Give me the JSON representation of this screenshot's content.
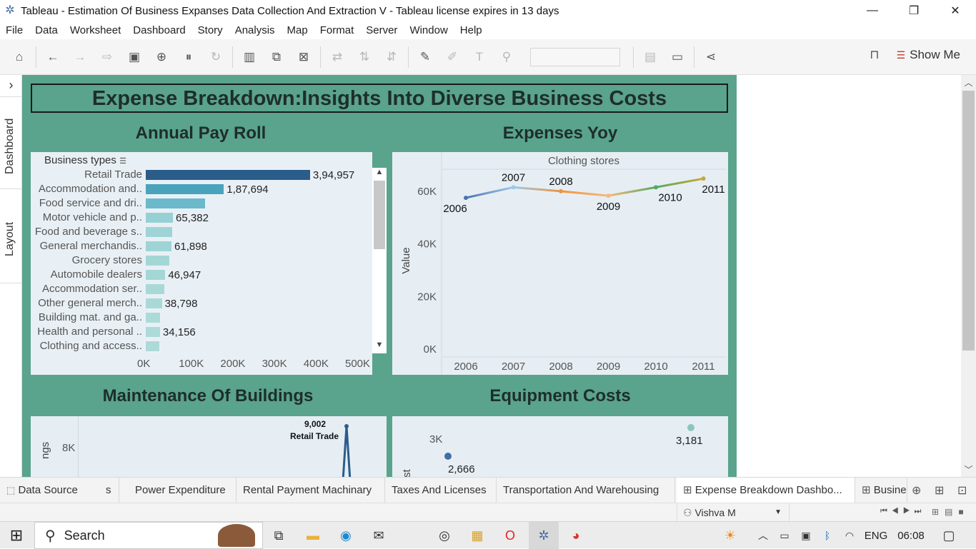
{
  "window": {
    "title": "Tableau - Estimation Of Business Expanses Data Collection And Extraction V - Tableau license expires in 13 days",
    "minimize": "—",
    "restore": "❐",
    "close": "✕"
  },
  "menu": [
    "File",
    "Data",
    "Worksheet",
    "Dashboard",
    "Story",
    "Analysis",
    "Map",
    "Format",
    "Server",
    "Window",
    "Help"
  ],
  "toolbar": {
    "show_me": "Show Me",
    "icons": [
      "home-icon",
      "undo-icon",
      "redo-icon",
      "replay-icon",
      "save-icon",
      "new-datasource-icon",
      "pause-icon",
      "refresh-icon",
      "new-worksheet-icon",
      "duplicate-icon",
      "clear-icon",
      "swap-icon",
      "sort-asc-icon",
      "sort-desc-icon",
      "highlight-icon",
      "annotate-icon",
      "label-icon",
      "pin-icon",
      "chart-icon",
      "presentation-icon",
      "share-icon",
      "paint-icon"
    ]
  },
  "left_rail": {
    "dashboard": "Dashboard",
    "layout": "Layout",
    "expand": "›"
  },
  "dashboard": {
    "title": "Expense Breakdown:Insights Into Diverse Business Costs",
    "sections": {
      "payroll": "Annual Pay Roll",
      "expenses": "Expenses Yoy",
      "maintenance": "Maintenance Of Buildings",
      "equipment": "Equipment Costs"
    }
  },
  "payroll_chart": {
    "header": "Business types",
    "axis_ticks": [
      "0K",
      "100K",
      "200K",
      "300K",
      "400K",
      "500K"
    ]
  },
  "yoy_chart": {
    "panel_header": "Clothing stores",
    "ylabel": "Value",
    "y_ticks": [
      "0K",
      "20K",
      "40K",
      "60K"
    ],
    "x_ticks": [
      "2006",
      "2007",
      "2008",
      "2009",
      "2010",
      "2011"
    ]
  },
  "maint_chart": {
    "ylabel_partial": "ngs",
    "y_tick": "8K",
    "peak_value": "9,002",
    "peak_label": "Retail Trade"
  },
  "equip_chart": {
    "ylabel_partial": "st",
    "y_tick": "3K",
    "labels": [
      "2,666",
      "3,181"
    ]
  },
  "chart_data": [
    {
      "type": "bar",
      "title": "Annual Pay Roll",
      "categories": [
        "Retail Trade",
        "Accommodation and..",
        "Food service and dri..",
        "Motor vehicle and p..",
        "Food and beverage s..",
        "General merchandis..",
        "Grocery stores",
        "Automobile dealers",
        "Accommodation ser..",
        "Other general merch..",
        "Building mat. and ga..",
        "Health and personal ..",
        "Clothing and access.."
      ],
      "values": [
        394957,
        187694,
        142000,
        65382,
        64000,
        61898,
        57000,
        46947,
        44000,
        38798,
        34800,
        34156,
        32000
      ],
      "value_labels": [
        "3,94,957",
        "1,87,694",
        "",
        "65,382",
        "",
        "61,898",
        "",
        "46,947",
        "",
        "38,798",
        "",
        "34,156",
        ""
      ],
      "colors": [
        "#2b5d8a",
        "#4aa3bd",
        "#6cb9cc",
        "#97d0d4",
        "#9fd4d6",
        "#9fd4d6",
        "#a3d7d6",
        "#a3d7d6",
        "#a8d9d7",
        "#a8d9d7",
        "#abdbd8",
        "#abdbd8",
        "#add9d8"
      ],
      "xlim": [
        0,
        500000
      ],
      "ylabel": "Business types"
    },
    {
      "type": "line",
      "title": "Expenses Yoy",
      "panel": "Clothing stores",
      "x": [
        2006,
        2007,
        2008,
        2009,
        2010,
        2011
      ],
      "values": [
        57500,
        61500,
        60000,
        58300,
        61500,
        64800
      ],
      "ylim": [
        0,
        70000
      ],
      "ylabel": "Value"
    },
    {
      "type": "line",
      "title": "Maintenance Of Buildings",
      "annotations": [
        {
          "value": 9002,
          "label": "Retail Trade"
        }
      ]
    },
    {
      "type": "scatter",
      "title": "Equipment Costs",
      "values": [
        2666,
        3181
      ]
    }
  ],
  "sheet_tabs": {
    "data_source": "Data Source",
    "cut": "s",
    "tabs": [
      "Power Expenditure",
      "Rental Payment Machinary",
      "Taxes And Licenses",
      "Transportation And Warehousing"
    ],
    "active": "Expense Breakdown Dashbo...",
    "partial": "Busine"
  },
  "status": {
    "user": "Vishva M"
  },
  "taskbar": {
    "search": "Search",
    "lang": "ENG",
    "time": "06:08"
  }
}
